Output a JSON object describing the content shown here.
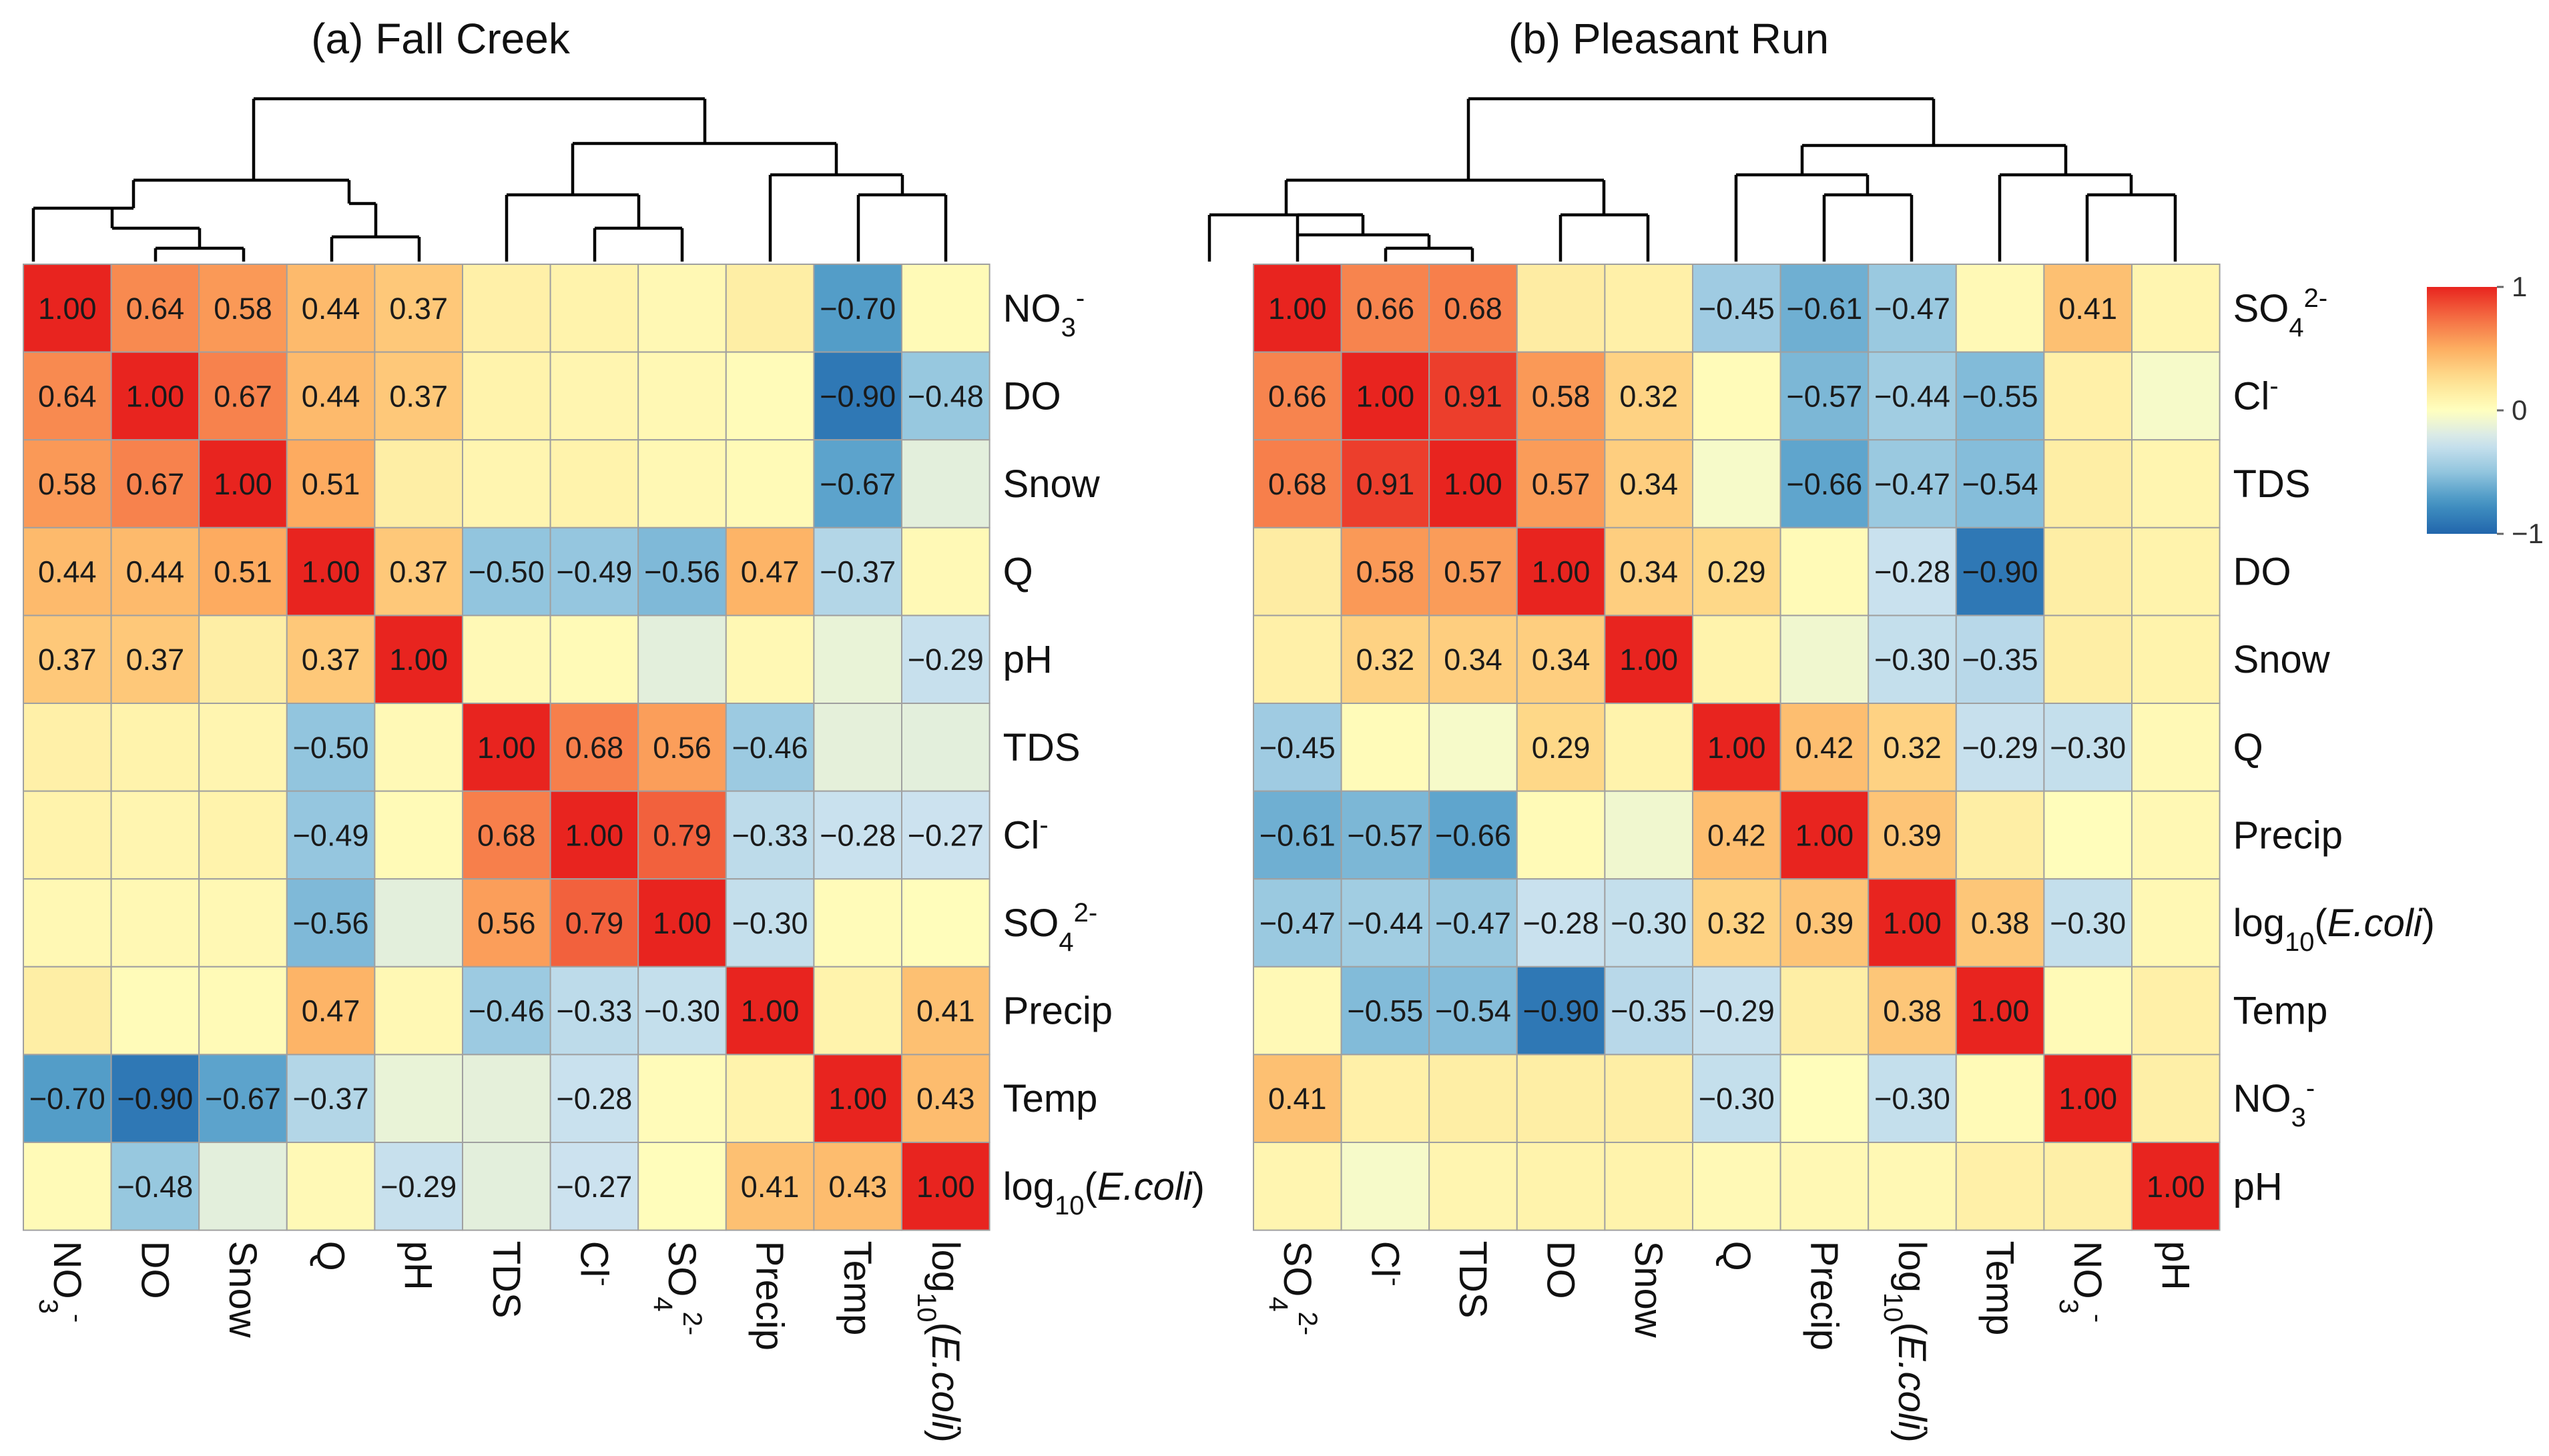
{
  "chart_data": [
    {
      "type": "heatmap",
      "title": "(a) Fall Creek",
      "row_labels": [
        "NO3-",
        "DO",
        "Snow",
        "Q",
        "pH",
        "TDS",
        "Cl-",
        "SO4 2-",
        "Precip",
        "Temp",
        "log10(E.coli)"
      ],
      "col_labels": [
        "NO3-",
        "DO",
        "Snow",
        "Q",
        "pH",
        "TDS",
        "Cl-",
        "SO4 2-",
        "Precip",
        "Temp",
        "log10(E.coli)"
      ],
      "values": [
        [
          1.0,
          0.64,
          0.58,
          0.44,
          0.37,
          0.12,
          0.1,
          0.06,
          0.14,
          -0.7,
          0.04
        ],
        [
          0.64,
          1.0,
          0.67,
          0.44,
          0.37,
          0.1,
          0.08,
          0.06,
          0.03,
          -0.9,
          -0.48
        ],
        [
          0.58,
          0.67,
          1.0,
          0.51,
          0.14,
          0.08,
          0.1,
          0.06,
          0.04,
          -0.67,
          -0.15
        ],
        [
          0.44,
          0.44,
          0.51,
          1.0,
          0.37,
          -0.5,
          -0.49,
          -0.56,
          0.47,
          -0.37,
          0.05
        ],
        [
          0.37,
          0.37,
          0.14,
          0.37,
          1.0,
          0.05,
          0.04,
          -0.15,
          0.06,
          -0.12,
          -0.29
        ],
        [
          0.12,
          0.1,
          0.08,
          -0.5,
          0.05,
          1.0,
          0.68,
          0.56,
          -0.46,
          -0.14,
          -0.15
        ],
        [
          0.1,
          0.08,
          0.1,
          -0.49,
          0.04,
          0.68,
          1.0,
          0.79,
          -0.33,
          -0.28,
          -0.27
        ],
        [
          0.06,
          0.06,
          0.06,
          -0.56,
          -0.15,
          0.56,
          0.79,
          1.0,
          -0.3,
          0.03,
          0.02
        ],
        [
          0.14,
          0.03,
          0.04,
          0.47,
          0.06,
          -0.46,
          -0.33,
          -0.3,
          1.0,
          0.1,
          0.41
        ],
        [
          -0.7,
          -0.9,
          -0.67,
          -0.37,
          -0.12,
          -0.14,
          -0.28,
          0.03,
          0.1,
          1.0,
          0.43
        ],
        [
          0.04,
          -0.48,
          -0.15,
          0.05,
          -0.29,
          -0.15,
          -0.27,
          0.02,
          0.41,
          0.43,
          1.0
        ]
      ],
      "label_threshold": 0.25
    },
    {
      "type": "heatmap",
      "title": "(b) Pleasant Run",
      "row_labels": [
        "SO4 2-",
        "Cl-",
        "TDS",
        "DO",
        "Snow",
        "Q",
        "Precip",
        "log10(E.coli)",
        "Temp",
        "NO3-",
        "pH"
      ],
      "col_labels": [
        "SO4 2-",
        "Cl-",
        "TDS",
        "DO",
        "Snow",
        "Q",
        "Precip",
        "log10(E.coli)",
        "Temp",
        "NO3-",
        "pH"
      ],
      "values": [
        [
          1.0,
          0.66,
          0.68,
          0.15,
          0.12,
          -0.45,
          -0.61,
          -0.47,
          0.05,
          0.41,
          0.08
        ],
        [
          0.66,
          1.0,
          0.91,
          0.58,
          0.32,
          0.03,
          -0.57,
          -0.44,
          -0.55,
          0.12,
          -0.05
        ],
        [
          0.68,
          0.91,
          1.0,
          0.57,
          0.34,
          -0.05,
          -0.66,
          -0.47,
          -0.54,
          0.14,
          0.08
        ],
        [
          0.15,
          0.58,
          0.57,
          1.0,
          0.34,
          0.29,
          0.04,
          -0.28,
          -0.9,
          0.14,
          0.1
        ],
        [
          0.12,
          0.32,
          0.34,
          0.34,
          1.0,
          0.1,
          -0.08,
          -0.3,
          -0.35,
          0.14,
          0.1
        ],
        [
          -0.45,
          0.03,
          -0.05,
          0.29,
          0.1,
          1.0,
          0.42,
          0.32,
          -0.29,
          -0.3,
          0.05
        ],
        [
          -0.61,
          -0.57,
          -0.66,
          0.04,
          -0.08,
          0.42,
          1.0,
          0.39,
          0.14,
          0.02,
          0.06
        ],
        [
          -0.47,
          -0.44,
          -0.47,
          -0.28,
          -0.3,
          0.32,
          0.39,
          1.0,
          0.38,
          -0.3,
          0.06
        ],
        [
          0.05,
          -0.55,
          -0.54,
          -0.9,
          -0.35,
          -0.29,
          0.14,
          0.38,
          1.0,
          0.04,
          0.12
        ],
        [
          0.41,
          0.12,
          0.14,
          0.14,
          0.14,
          -0.3,
          0.02,
          -0.3,
          0.04,
          1.0,
          0.13
        ],
        [
          0.08,
          -0.05,
          0.08,
          0.1,
          0.1,
          0.05,
          0.06,
          0.06,
          0.12,
          0.13,
          1.0
        ]
      ],
      "label_threshold": 0.25
    }
  ],
  "legend": {
    "ticks": [
      {
        "value": 1,
        "label": "1"
      },
      {
        "value": 0,
        "label": "0"
      },
      {
        "value": -1,
        "label": "−1"
      }
    ],
    "range": [
      -1,
      1
    ]
  },
  "colors": {
    "scale": [
      "#2166ac",
      "#4393c3",
      "#92c5de",
      "#d1e5f0",
      "#ffffbf",
      "#fee090",
      "#fdae61",
      "#f46d43",
      "#e8241f"
    ],
    "grid": "#a0a0a0",
    "dendrogram": "#000000"
  }
}
